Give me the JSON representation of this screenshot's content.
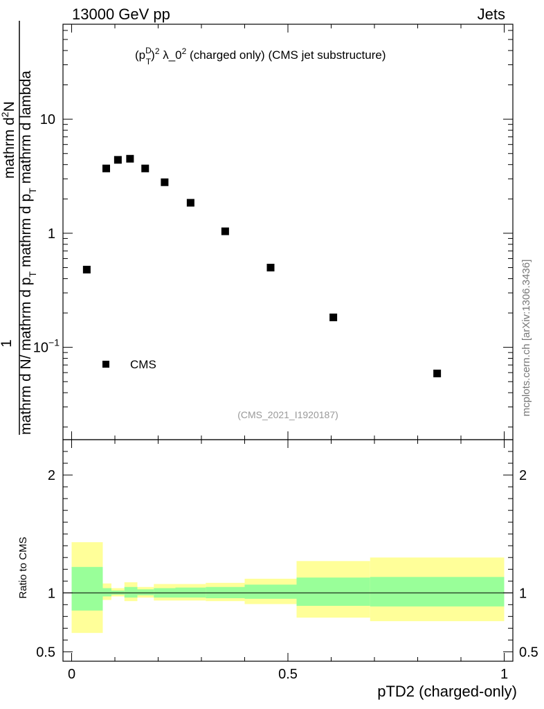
{
  "header": {
    "left": "13000 GeV pp",
    "right": "Jets"
  },
  "side_label": "mcplots.cern.ch [arXiv:1306.3436]",
  "chart_data": {
    "type": "scatter",
    "title_parts": {
      "p": "(p",
      "sup_d": "D",
      "sub_t": "T",
      "close": ")",
      "sup_2a": "2",
      "mid": " λ_0",
      "sup_2b": "2",
      "rest": " (charged only) (CMS jet substructure)"
    },
    "watermark": "(CMS_2021_I1920187)",
    "ylabel_parts": {
      "one": "1",
      "den_a": "mathrm d N",
      "den_b": "/ mathrm d p",
      "den_b_sub": "T",
      "den_c": " mathrm d p",
      "den_c_sub": "T",
      "den_d": " mathrm d lambda",
      "num": "mathrm d",
      "num_sup": "2",
      "num_b": "N"
    },
    "xlabel": "pTD2 (charged-only)",
    "ratio_ylabel": "Ratio to CMS",
    "x_ticks": [
      "0",
      "0.5",
      "1"
    ],
    "y_ticks_main": [
      {
        "value": 10,
        "base": "10",
        "exp": ""
      },
      {
        "value": 1,
        "base": "1",
        "exp": ""
      },
      {
        "value": 0.1,
        "base": "10",
        "exp": "−1"
      }
    ],
    "y_ticks_ratio": [
      "2",
      "1",
      "0.5"
    ],
    "xlim": [
      -0.02,
      1.02
    ],
    "ylim_main": [
      0.0155,
      68
    ],
    "ylim_ratio": [
      0.42,
      2.3
    ],
    "log_y": true,
    "legend": {
      "name": "CMS",
      "placement": "bottom-left"
    },
    "series": [
      {
        "name": "CMS",
        "x": [
          0.035,
          0.08,
          0.107,
          0.135,
          0.17,
          0.215,
          0.275,
          0.355,
          0.46,
          0.605,
          0.845
        ],
        "y": [
          0.48,
          3.7,
          4.4,
          4.5,
          3.7,
          2.8,
          1.85,
          1.04,
          0.5,
          0.183,
          0.059
        ]
      }
    ],
    "ratio_bands": [
      {
        "x0": 0.0,
        "x1": 0.072,
        "inner": [
          0.85,
          1.22
        ],
        "outer": [
          0.66,
          1.43
        ]
      },
      {
        "x0": 0.072,
        "x1": 0.092,
        "inner": [
          0.97,
          1.04
        ],
        "outer": [
          0.94,
          1.08
        ]
      },
      {
        "x0": 0.092,
        "x1": 0.122,
        "inner": [
          0.985,
          1.02
        ],
        "outer": [
          0.97,
          1.04
        ]
      },
      {
        "x0": 0.122,
        "x1": 0.152,
        "inner": [
          0.96,
          1.05
        ],
        "outer": [
          0.93,
          1.09
        ]
      },
      {
        "x0": 0.152,
        "x1": 0.19,
        "inner": [
          0.98,
          1.03
        ],
        "outer": [
          0.96,
          1.05
        ]
      },
      {
        "x0": 0.19,
        "x1": 0.24,
        "inner": [
          0.96,
          1.04
        ],
        "outer": [
          0.935,
          1.075
        ]
      },
      {
        "x0": 0.24,
        "x1": 0.31,
        "inner": [
          0.96,
          1.045
        ],
        "outer": [
          0.935,
          1.075
        ]
      },
      {
        "x0": 0.31,
        "x1": 0.4,
        "inner": [
          0.955,
          1.05
        ],
        "outer": [
          0.93,
          1.085
        ]
      },
      {
        "x0": 0.4,
        "x1": 0.52,
        "inner": [
          0.95,
          1.07
        ],
        "outer": [
          0.905,
          1.12
        ]
      },
      {
        "x0": 0.52,
        "x1": 0.69,
        "inner": [
          0.89,
          1.13
        ],
        "outer": [
          0.79,
          1.27
        ]
      },
      {
        "x0": 0.69,
        "x1": 1.0,
        "inner": [
          0.885,
          1.135
        ],
        "outer": [
          0.76,
          1.3
        ]
      }
    ],
    "colors": {
      "inner_band": "#99ff99",
      "outer_band": "#ffff99",
      "marker": "#000000",
      "watermark": "#999999",
      "side_label": "#777777"
    }
  }
}
